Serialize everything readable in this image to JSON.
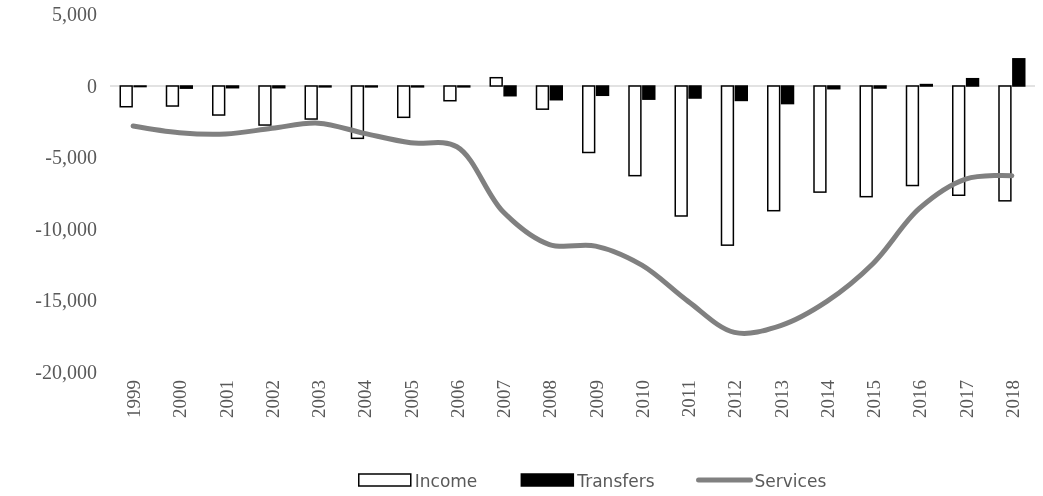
{
  "chart_data": {
    "type": "bar",
    "categories": [
      "1999",
      "2000",
      "2001",
      "2002",
      "2003",
      "2004",
      "2005",
      "2006",
      "2007",
      "2008",
      "2009",
      "2010",
      "2011",
      "2012",
      "2013",
      "2014",
      "2015",
      "2016",
      "2017",
      "2018"
    ],
    "series": [
      {
        "name": "Income",
        "color": "#ffffff",
        "values": [
          -1450,
          -1400,
          -2030,
          -2730,
          -2310,
          -3660,
          -2190,
          -1030,
          580,
          -1620,
          -4650,
          -6270,
          -9090,
          -11130,
          -8720,
          -7420,
          -7740,
          -6960,
          -7640,
          -8030
        ]
      },
      {
        "name": "Transfers",
        "color": "#000000",
        "values": [
          -40,
          -150,
          -120,
          -120,
          -60,
          -60,
          -60,
          -60,
          -680,
          -960,
          -650,
          -920,
          -840,
          -1010,
          -1230,
          -190,
          -140,
          100,
          510,
          1900
        ]
      },
      {
        "name": "Services",
        "type": "line",
        "color": "#808080",
        "values": [
          -2800,
          -3270,
          -3360,
          -2960,
          -2600,
          -3310,
          -3970,
          -4250,
          -8800,
          -11090,
          -11200,
          -12530,
          -15060,
          -17230,
          -16750,
          -15060,
          -12410,
          -8560,
          -6510,
          -6270
        ]
      }
    ],
    "ylim": [
      -20000,
      5000
    ],
    "yticks": [
      {
        "value": -20000,
        "label": "-20,000"
      },
      {
        "value": -15000,
        "label": "-15,000"
      },
      {
        "value": -10000,
        "label": "-10,000"
      },
      {
        "value": -5000,
        "label": "-5,000"
      },
      0,
      {
        "value": 5000,
        "label": "5,000"
      }
    ],
    "legend": "bottom",
    "line_style": "solid"
  }
}
